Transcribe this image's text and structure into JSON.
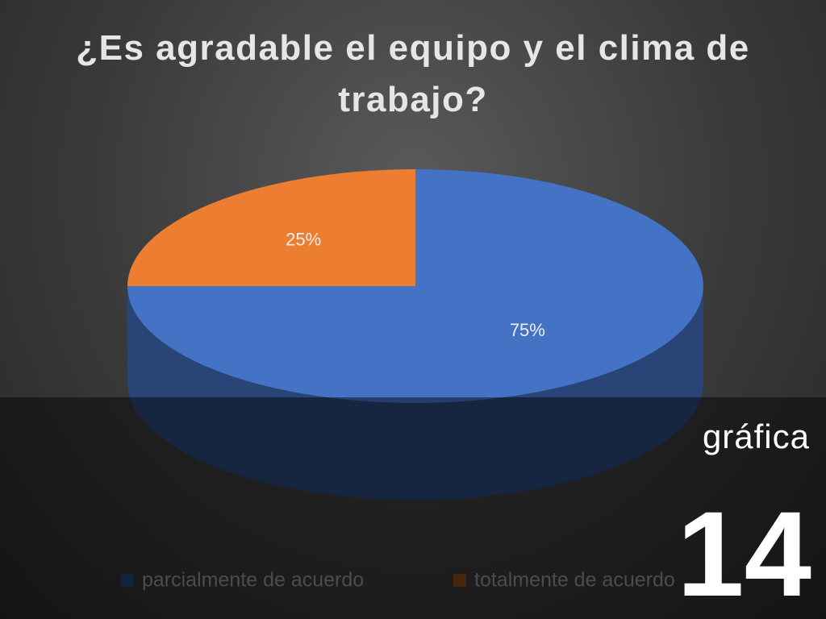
{
  "chart_data": {
    "type": "pie",
    "title": "¿Es agradable el equipo y el clima de trabajo?",
    "categories": [
      "parcialmente de acuerdo",
      "totalmente de acuerdo"
    ],
    "values": [
      75,
      25
    ],
    "value_labels": [
      "75%",
      "25%"
    ],
    "colors": [
      "#4472c4",
      "#ed7d31"
    ],
    "legend": "bottom"
  },
  "overlay": {
    "caption": "gráfica",
    "number": "14"
  }
}
